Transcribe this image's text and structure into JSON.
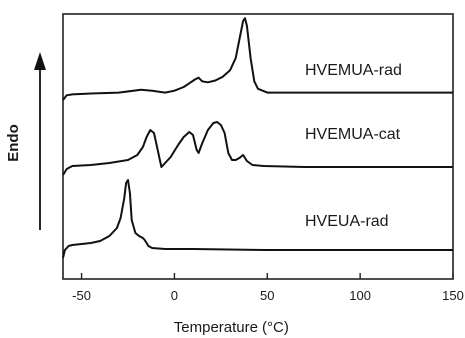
{
  "chart_data": {
    "type": "line",
    "title": "",
    "xlabel": "Temperature",
    "xlabel_unit": "(°C)",
    "ylabel": "Endo",
    "xlim": [
      -60,
      150
    ],
    "xticks": [
      -50,
      0,
      50,
      100,
      150
    ],
    "xtick_labels": [
      "-50",
      "0",
      "50",
      "100",
      "150"
    ],
    "yaxis_arrow": true,
    "grid": false,
    "legend": "none",
    "series": [
      {
        "name": "HVEMUA-rad",
        "points": [
          [
            -60,
            0
          ],
          [
            -58,
            5
          ],
          [
            -55,
            6
          ],
          [
            -45,
            7
          ],
          [
            -30,
            8
          ],
          [
            -18,
            11
          ],
          [
            -12,
            10
          ],
          [
            -5,
            8
          ],
          [
            0,
            10
          ],
          [
            5,
            14
          ],
          [
            8,
            18
          ],
          [
            11,
            22
          ],
          [
            13,
            24
          ],
          [
            15,
            20
          ],
          [
            18,
            19
          ],
          [
            22,
            21
          ],
          [
            26,
            25
          ],
          [
            30,
            32
          ],
          [
            33,
            45
          ],
          [
            35,
            65
          ],
          [
            37,
            85
          ],
          [
            38,
            88
          ],
          [
            39,
            80
          ],
          [
            41,
            45
          ],
          [
            43,
            20
          ],
          [
            45,
            12
          ],
          [
            50,
            8
          ],
          [
            70,
            8
          ],
          [
            100,
            8
          ],
          [
            120,
            8
          ],
          [
            150,
            8
          ]
        ]
      },
      {
        "name": "HVEMUA-cat",
        "points": [
          [
            -60,
            0
          ],
          [
            -58,
            6
          ],
          [
            -55,
            9
          ],
          [
            -45,
            10
          ],
          [
            -35,
            12
          ],
          [
            -25,
            15
          ],
          [
            -20,
            20
          ],
          [
            -17,
            28
          ],
          [
            -15,
            38
          ],
          [
            -13,
            45
          ],
          [
            -11,
            42
          ],
          [
            -9,
            25
          ],
          [
            -7,
            8
          ],
          [
            -5,
            12
          ],
          [
            -2,
            18
          ],
          [
            2,
            30
          ],
          [
            5,
            38
          ],
          [
            8,
            43
          ],
          [
            10,
            40
          ],
          [
            12,
            25
          ],
          [
            13,
            22
          ],
          [
            15,
            32
          ],
          [
            18,
            45
          ],
          [
            21,
            52
          ],
          [
            23,
            53
          ],
          [
            25,
            50
          ],
          [
            27,
            42
          ],
          [
            29,
            22
          ],
          [
            31,
            15
          ],
          [
            33,
            15
          ],
          [
            35,
            17
          ],
          [
            37,
            20
          ],
          [
            39,
            14
          ],
          [
            42,
            10
          ],
          [
            48,
            9
          ],
          [
            70,
            8
          ],
          [
            100,
            8
          ],
          [
            150,
            8
          ]
        ]
      },
      {
        "name": "HVEUA-rad",
        "points": [
          [
            -60,
            0
          ],
          [
            -59,
            8
          ],
          [
            -57,
            12
          ],
          [
            -55,
            13
          ],
          [
            -45,
            15
          ],
          [
            -40,
            17
          ],
          [
            -35,
            22
          ],
          [
            -31,
            30
          ],
          [
            -29,
            40
          ],
          [
            -27,
            60
          ],
          [
            -26,
            75
          ],
          [
            -25,
            78
          ],
          [
            -24,
            65
          ],
          [
            -23,
            38
          ],
          [
            -21,
            25
          ],
          [
            -19,
            22
          ],
          [
            -17,
            20
          ],
          [
            -16,
            18
          ],
          [
            -15,
            15
          ],
          [
            -14,
            12
          ],
          [
            -12,
            10
          ],
          [
            -5,
            9
          ],
          [
            10,
            9
          ],
          [
            50,
            8
          ],
          [
            100,
            8
          ],
          [
            150,
            8
          ]
        ]
      }
    ]
  }
}
